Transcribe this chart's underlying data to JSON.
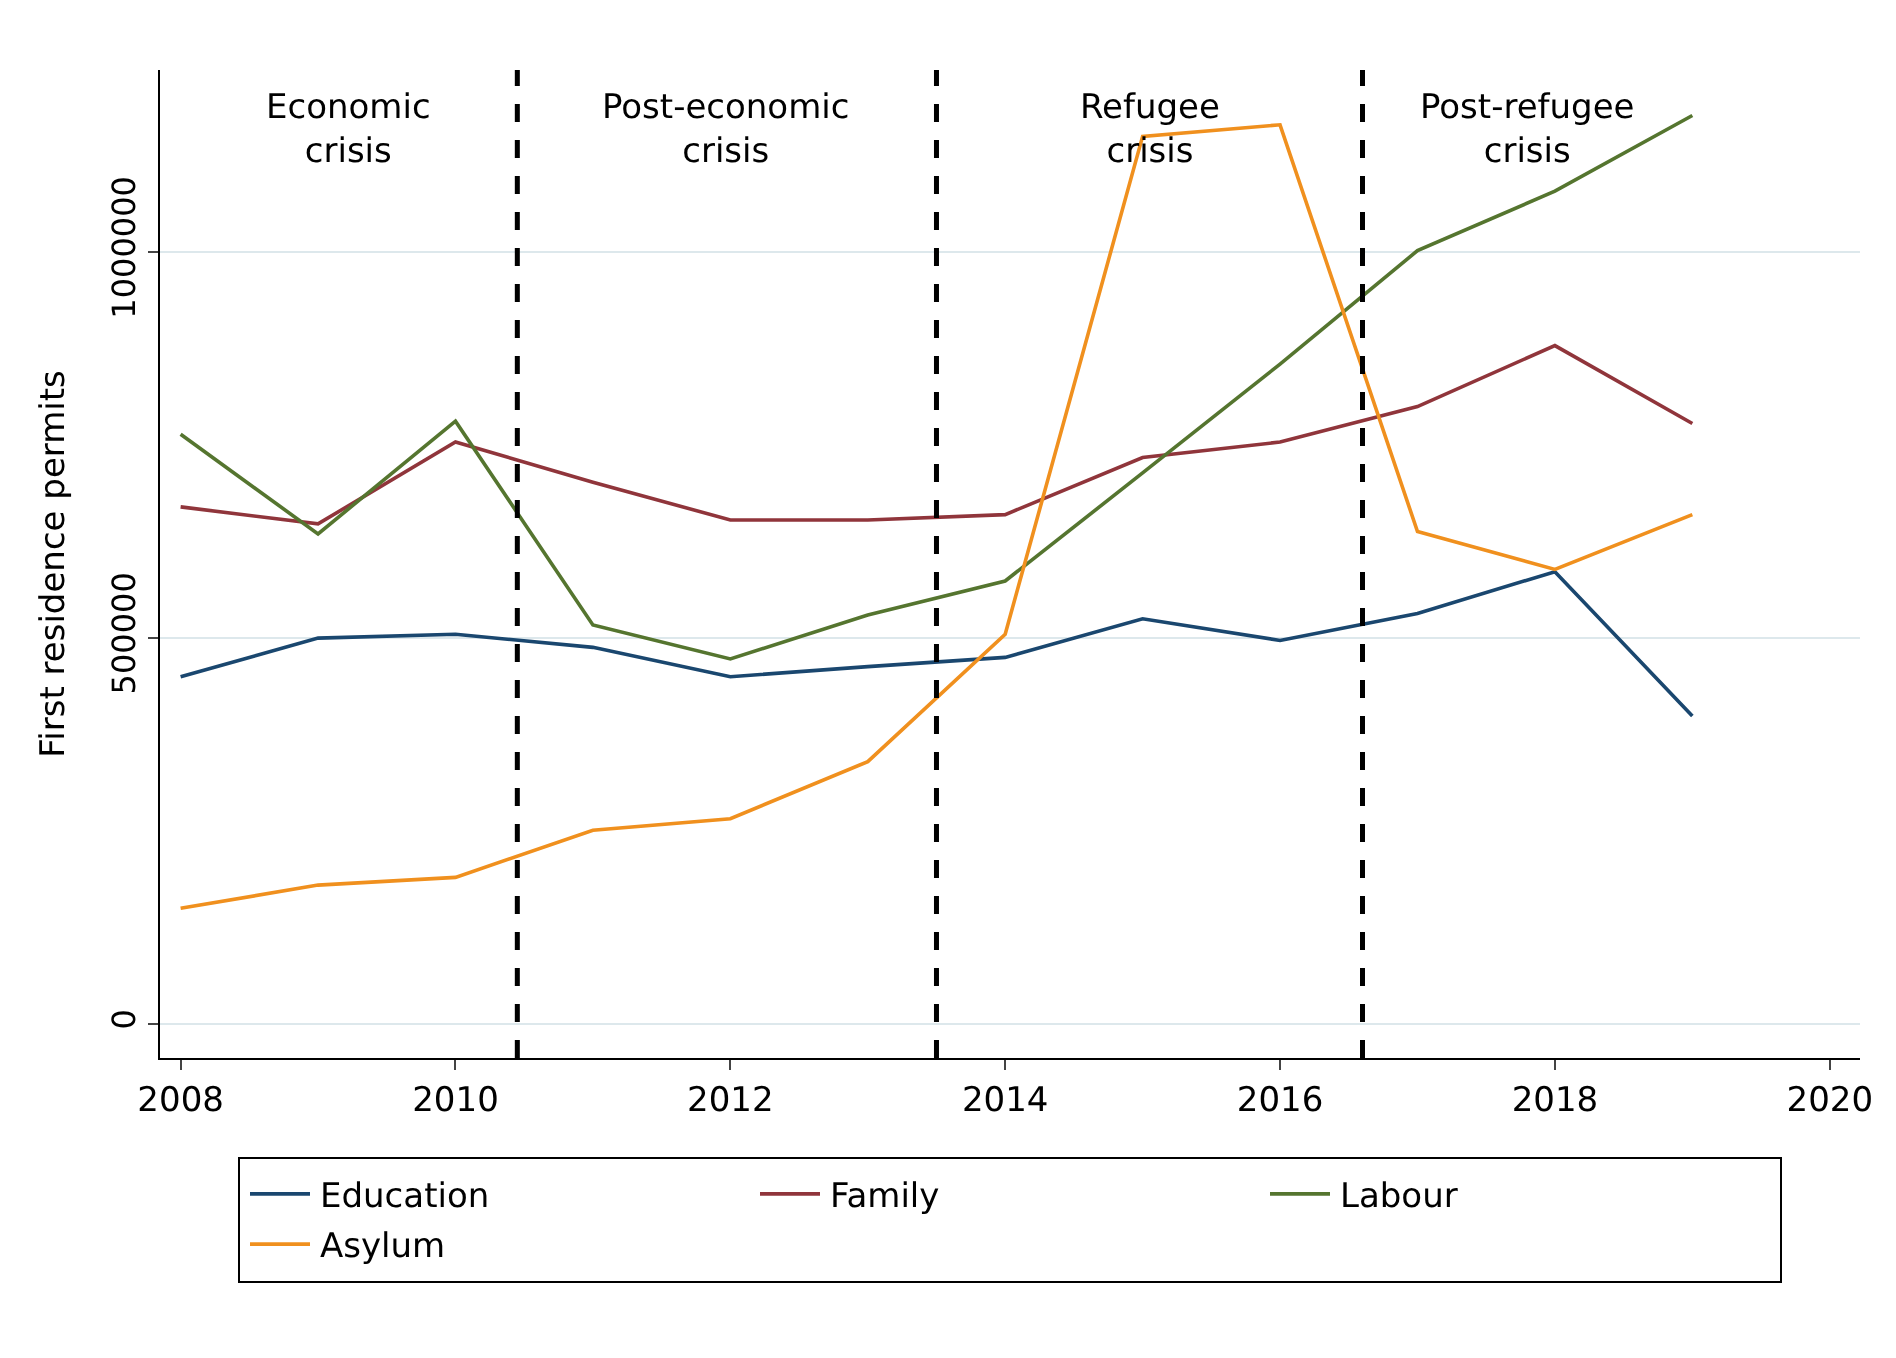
{
  "chart_data": {
    "type": "line",
    "ylabel": "First residence permits",
    "x": [
      2008,
      2009,
      2010,
      2011,
      2012,
      2013,
      2014,
      2015,
      2016,
      2017,
      2018,
      2019
    ],
    "series": [
      {
        "name": "Education",
        "color": "#1a476f",
        "values": [
          450000,
          500000,
          505000,
          488000,
          450000,
          463000,
          475000,
          525000,
          497000,
          532000,
          586000,
          399000
        ]
      },
      {
        "name": "Family",
        "color": "#90353b",
        "values": [
          670000,
          648000,
          754000,
          702000,
          653000,
          653000,
          660000,
          734000,
          754000,
          800000,
          879000,
          778000
        ]
      },
      {
        "name": "Labour",
        "color": "#55752f",
        "values": [
          764000,
          635000,
          781000,
          517000,
          473000,
          530000,
          574000,
          714000,
          855000,
          1002000,
          1079000,
          1177000
        ]
      },
      {
        "name": "Asylum",
        "color": "#f0901e",
        "values": [
          150000,
          180000,
          190000,
          251000,
          266000,
          340000,
          505000,
          1150000,
          1165000,
          638000,
          589000,
          660000
        ]
      }
    ],
    "xlim": [
      2007.85,
      2020.22
    ],
    "xticks": [
      2008,
      2010,
      2012,
      2014,
      2016,
      2018,
      2020
    ],
    "ylim": [
      -44000,
      1236000
    ],
    "yticks": [
      0,
      500000,
      1000000
    ],
    "ref_lines": [
      {
        "axis": "x",
        "value": 2010.45,
        "color": "#000000",
        "line_style": "dashed"
      },
      {
        "axis": "x",
        "value": 2013.5,
        "color": "#000000",
        "line_style": "dashed"
      },
      {
        "axis": "x",
        "value": 2016.6,
        "color": "#000000",
        "line_style": "dashed"
      }
    ],
    "annotations": [
      "Economic\ncrisis",
      "Post-economic\ncrisis",
      "Refugee\ncrisis",
      "Post-refugee\ncrisis"
    ],
    "grid": "y",
    "legend": "bottom",
    "marker": "none",
    "line_style": "solid"
  }
}
